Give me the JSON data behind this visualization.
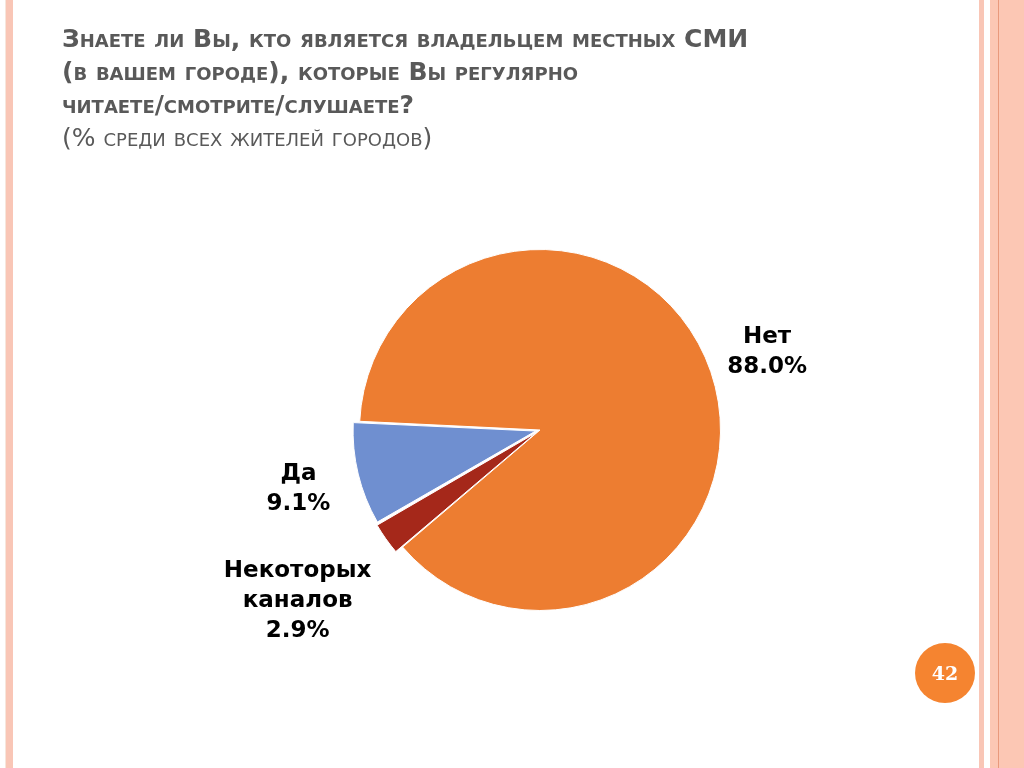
{
  "chart_data": {
    "type": "pie",
    "title": "Знаете ли Вы, кто является владельцем местных СМИ (в вашем городе), которые Вы регулярно читаете/смотрите/слушаете?",
    "subtitle": "(% среди всех жителей городов)",
    "categories": [
      "Да",
      "Нет",
      "Некоторых каналов"
    ],
    "values": [
      9.1,
      88.0,
      2.9
    ],
    "value_labels": [
      "9.1%",
      "88.0%",
      "2.9%"
    ],
    "colors": [
      "#6f8fd0",
      "#ed7d31",
      "#a5281a"
    ],
    "annotations": [
      "42"
    ],
    "legend": false
  }
}
